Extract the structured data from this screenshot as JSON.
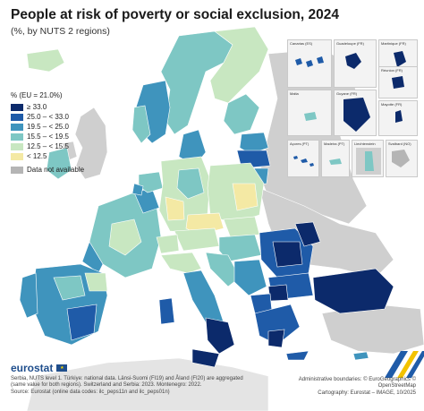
{
  "title": "People at risk of poverty or social exclusion, 2024",
  "subtitle": "(%, by NUTS 2 regions)",
  "legend": {
    "title": "% (EU = 21.0%)",
    "classes": [
      {
        "label": "≥ 33.0",
        "color": "#0c2a6b"
      },
      {
        "label": "25.0 – < 33.0",
        "color": "#1f5ba8"
      },
      {
        "label": "19.5 – < 25.0",
        "color": "#3f94bd"
      },
      {
        "label": "15.5 – < 19.5",
        "color": "#7ec7c4"
      },
      {
        "label": "12.5 – < 15.5",
        "color": "#c8e7c1"
      },
      {
        "label": "< 12.5",
        "color": "#f4e9a4"
      }
    ],
    "na": {
      "label": "Data not available",
      "color": "#b5b5b5"
    }
  },
  "insets": {
    "canarias": "Canarias (ES)",
    "guadeloupe": "Guadeloupe (FR)",
    "martinique": "Martinique (FR)",
    "guyane": "Guyane (FR)",
    "reunion": "Réunion (FR)",
    "mayotte": "Mayotte (FR)",
    "malta": "Malta",
    "acores": "Açores (PT)",
    "madeira": "Madeira (PT)",
    "liechtenstein": "Liechtenstein",
    "svalbard": "Svalbard (NO)"
  },
  "colors": {
    "land_na": "#cfcfcf",
    "sea": "#ffffff",
    "border": "#ffffff"
  },
  "brand": "eurostat",
  "notes": "Serbia, NUTS level 1. Türkiye: national data. Länsi-Suomi (FI19) and Åland (FI20) are aggregated (same value for both regions). Switzerland and Serbia: 2023. Montenegro: 2022.\nSource: Eurostat (online data codes: ilc_peps11n and ilc_peps01n)",
  "credits": "Administrative boundaries: © EuroGeographics © OpenStreetMap\nCartography: Eurostat – IMAGE, 10/2025"
}
